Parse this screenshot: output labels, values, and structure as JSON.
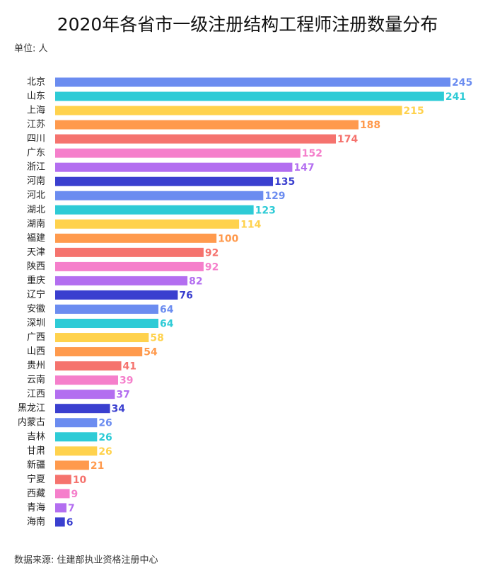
{
  "chart_data": {
    "type": "hbar",
    "title": "2020年各省市一级注册结构工程师注册数量分布",
    "subtitle": "单位: 人",
    "source": "数据来源: 住建部执业资格注册中心",
    "categories": [
      "北京",
      "山东",
      "上海",
      "江苏",
      "四川",
      "广东",
      "浙江",
      "河南",
      "河北",
      "湖北",
      "湖南",
      "福建",
      "天津",
      "陕西",
      "重庆",
      "辽宁",
      "安徽",
      "深圳",
      "广西",
      "山西",
      "贵州",
      "云南",
      "江西",
      "黑龙江",
      "内蒙古",
      "吉林",
      "甘肃",
      "新疆",
      "宁夏",
      "西藏",
      "青海",
      "海南"
    ],
    "values": [
      245,
      241,
      215,
      188,
      174,
      152,
      147,
      135,
      129,
      123,
      114,
      100,
      92,
      92,
      82,
      76,
      64,
      64,
      58,
      54,
      41,
      39,
      37,
      34,
      26,
      26,
      26,
      21,
      10,
      9,
      7,
      6
    ],
    "colors": [
      "#6b8cf0",
      "#2ecbd6",
      "#ffd24d",
      "#ff9a4d",
      "#f5736e",
      "#f57fcb",
      "#b36ef0",
      "#3a3fcf"
    ]
  }
}
